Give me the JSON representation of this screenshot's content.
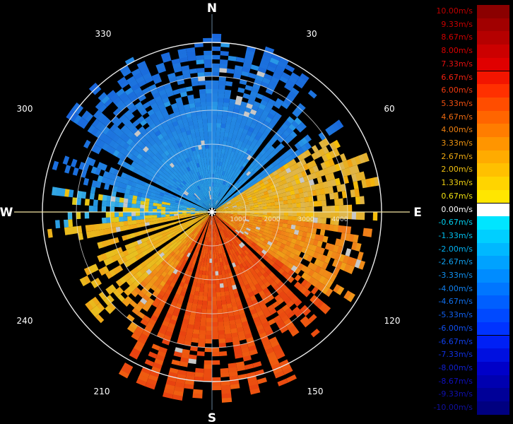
{
  "compass": {
    "n": "N",
    "e": "E",
    "s": "S",
    "w": "W"
  },
  "bearings": [
    "30",
    "60",
    "120",
    "150",
    "210",
    "240",
    "300",
    "330"
  ],
  "range_labels": [
    "1000",
    "2000",
    "3000",
    "4000"
  ],
  "colors": {
    "background": "#000000",
    "ring": "#e8e8e8",
    "crosshair": "#ffffff"
  },
  "legend": [
    {
      "label": "10.00m/s",
      "color": "#8b0000",
      "text_color": "#c00000"
    },
    {
      "label": "9.33m/s",
      "color": "#a10000",
      "text_color": "#c80000"
    },
    {
      "label": "8.67m/s",
      "color": "#b50000",
      "text_color": "#d00000"
    },
    {
      "label": "8.00m/s",
      "color": "#cc0000",
      "text_color": "#dd0000"
    },
    {
      "label": "7.33m/s",
      "color": "#e00000",
      "text_color": "#e61010"
    },
    {
      "label": "6.67m/s",
      "color": "#f21500",
      "text_color": "#f02010"
    },
    {
      "label": "6.00m/s",
      "color": "#ff3000",
      "text_color": "#f23a10"
    },
    {
      "label": "5.33m/s",
      "color": "#ff4d00",
      "text_color": "#f25010"
    },
    {
      "label": "4.67m/s",
      "color": "#ff6500",
      "text_color": "#f06a10"
    },
    {
      "label": "4.00m/s",
      "color": "#ff7d00",
      "text_color": "#f08010"
    },
    {
      "label": "3.33m/s",
      "color": "#ff9500",
      "text_color": "#f09510"
    },
    {
      "label": "2.67m/s",
      "color": "#ffab00",
      "text_color": "#f0aa10"
    },
    {
      "label": "2.00m/s",
      "color": "#ffc000",
      "text_color": "#f0c010"
    },
    {
      "label": "1.33m/s",
      "color": "#ffd400",
      "text_color": "#f0d010"
    },
    {
      "label": "0.67m/s",
      "color": "#ffe600",
      "text_color": "#f0e010"
    },
    {
      "label": "0.00m/s",
      "color": "#ffffff",
      "text_color": "#ffffff"
    },
    {
      "label": "-0.67m/s",
      "color": "#00e5ff",
      "text_color": "#00d0f0"
    },
    {
      "label": "-1.33m/s",
      "color": "#00cfff",
      "text_color": "#00c0f0"
    },
    {
      "label": "-2.00m/s",
      "color": "#00b8ff",
      "text_color": "#00b0f0"
    },
    {
      "label": "-2.67m/s",
      "color": "#00a2ff",
      "text_color": "#10a0f0"
    },
    {
      "label": "-3.33m/s",
      "color": "#008cff",
      "text_color": "#1090f0"
    },
    {
      "label": "-4.00m/s",
      "color": "#0076ff",
      "text_color": "#1080f0"
    },
    {
      "label": "-4.67m/s",
      "color": "#005fff",
      "text_color": "#1070f0"
    },
    {
      "label": "-5.33m/s",
      "color": "#0049ff",
      "text_color": "#1060f0"
    },
    {
      "label": "-6.00m/s",
      "color": "#0033ff",
      "text_color": "#1050f0"
    },
    {
      "label": "-6.67m/s",
      "color": "#0020f5",
      "text_color": "#1040f0"
    },
    {
      "label": "-7.33m/s",
      "color": "#0010e0",
      "text_color": "#1030e0"
    },
    {
      "label": "-8.00m/s",
      "color": "#0000c8",
      "text_color": "#1020d0"
    },
    {
      "label": "-8.67m/s",
      "color": "#0000b0",
      "text_color": "#1010c0"
    },
    {
      "label": "-9.33m/s",
      "color": "#000098",
      "text_color": "#1010b0"
    },
    {
      "label": "-10.00m/s",
      "color": "#000080",
      "text_color": "#1010a0"
    }
  ]
}
